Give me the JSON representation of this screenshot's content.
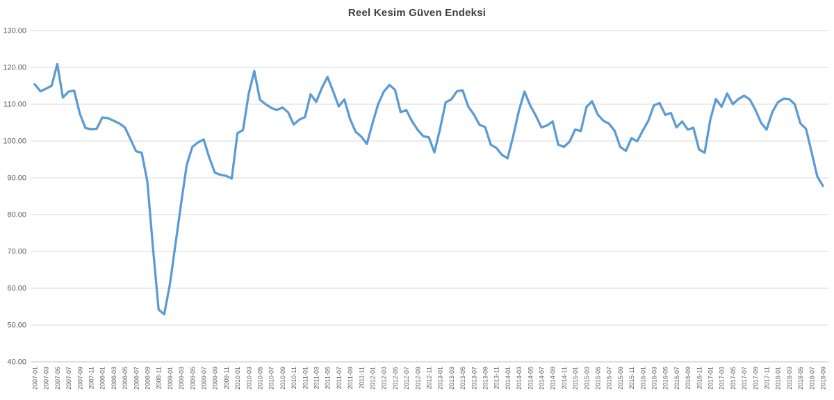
{
  "chart_data": {
    "type": "line",
    "title": "Reel Kesim Güven Endeksi",
    "xlabel": "",
    "ylabel": "",
    "ylim": [
      40,
      130
    ],
    "ytick_step": 10,
    "yticks": [
      "40.00",
      "50.00",
      "60.00",
      "70.00",
      "80.00",
      "90.00",
      "100.00",
      "110.00",
      "120.00",
      "130.00"
    ],
    "xtick_every": 2,
    "grid": true,
    "legend": "none",
    "colors": {
      "line": "#5b9bd5",
      "gridline": "#d9d9d9",
      "axis_line": "#bfbfbf",
      "tick_text": "#595959",
      "title_text": "#404040",
      "background": "#ffffff"
    },
    "x": [
      "2007-01",
      "2007-02",
      "2007-03",
      "2007-04",
      "2007-05",
      "2007-06",
      "2007-07",
      "2007-08",
      "2007-09",
      "2007-10",
      "2007-11",
      "2007-12",
      "2008-01",
      "2008-02",
      "2008-03",
      "2008-04",
      "2008-05",
      "2008-06",
      "2008-07",
      "2008-08",
      "2008-09",
      "2008-10",
      "2008-11",
      "2008-12",
      "2009-01",
      "2009-02",
      "2009-03",
      "2009-04",
      "2009-05",
      "2009-06",
      "2009-07",
      "2009-08",
      "2009-09",
      "2009-10",
      "2009-11",
      "2009-12",
      "2010-01",
      "2010-02",
      "2010-03",
      "2010-04",
      "2010-05",
      "2010-06",
      "2010-07",
      "2010-08",
      "2010-09",
      "2010-10",
      "2010-11",
      "2010-12",
      "2011-01",
      "2011-02",
      "2011-03",
      "2011-04",
      "2011-05",
      "2011-06",
      "2011-07",
      "2011-08",
      "2011-09",
      "2011-10",
      "2011-11",
      "2011-12",
      "2012-01",
      "2012-02",
      "2012-03",
      "2012-04",
      "2012-05",
      "2012-06",
      "2012-07",
      "2012-08",
      "2012-09",
      "2012-10",
      "2012-11",
      "2012-12",
      "2013-01",
      "2013-02",
      "2013-03",
      "2013-04",
      "2013-05",
      "2013-06",
      "2013-07",
      "2013-08",
      "2013-09",
      "2013-10",
      "2013-11",
      "2013-12",
      "2014-01",
      "2014-02",
      "2014-03",
      "2014-04",
      "2014-05",
      "2014-06",
      "2014-07",
      "2014-08",
      "2014-09",
      "2014-10",
      "2014-11",
      "2014-12",
      "2015-01",
      "2015-02",
      "2015-03",
      "2015-04",
      "2015-05",
      "2015-06",
      "2015-07",
      "2015-08",
      "2015-09",
      "2015-10",
      "2015-11",
      "2015-12",
      "2016-01",
      "2016-02",
      "2016-03",
      "2016-04",
      "2016-05",
      "2016-06",
      "2016-07",
      "2016-08",
      "2016-09",
      "2016-10",
      "2016-11",
      "2016-12",
      "2017-01",
      "2017-02",
      "2017-03",
      "2017-04",
      "2017-05",
      "2017-06",
      "2017-07",
      "2017-08",
      "2017-09",
      "2017-10",
      "2017-11",
      "2017-12",
      "2018-01",
      "2018-02",
      "2018-03",
      "2018-04",
      "2018-05",
      "2018-06",
      "2018-07",
      "2018-08",
      "2018-09"
    ],
    "values": [
      115.4,
      113.5,
      114.2,
      115.0,
      120.9,
      111.8,
      113.4,
      113.7,
      107.5,
      103.5,
      103.2,
      103.3,
      106.4,
      106.2,
      105.5,
      104.8,
      103.7,
      100.5,
      97.2,
      96.8,
      89.0,
      71.0,
      54.2,
      52.9,
      61.0,
      72.0,
      83.0,
      93.5,
      98.4,
      99.6,
      100.4,
      95.5,
      91.4,
      90.8,
      90.5,
      89.8,
      102.1,
      103.0,
      112.8,
      119.0,
      111.2,
      110.0,
      109.0,
      108.4,
      109.1,
      107.8,
      104.5,
      105.8,
      106.5,
      112.7,
      110.6,
      114.4,
      117.4,
      113.5,
      109.4,
      111.3,
      106.0,
      102.5,
      101.2,
      99.2,
      104.8,
      110.0,
      113.4,
      115.2,
      113.9,
      107.8,
      108.4,
      105.4,
      103.1,
      101.3,
      101.0,
      96.9,
      103.3,
      110.5,
      111.3,
      113.5,
      113.8,
      109.4,
      107.2,
      104.4,
      103.8,
      99.0,
      98.1,
      96.2,
      95.3,
      101.4,
      108.2,
      113.4,
      109.7,
      106.9,
      103.7,
      104.2,
      105.3,
      99.0,
      98.4,
      99.8,
      103.1,
      102.7,
      109.2,
      110.8,
      107.2,
      105.5,
      104.7,
      102.8,
      98.4,
      97.3,
      100.8,
      99.9,
      102.8,
      105.5,
      109.7,
      110.3,
      107.1,
      107.6,
      103.7,
      105.3,
      103.1,
      103.6,
      97.7,
      96.8,
      105.8,
      111.4,
      109.3,
      112.9,
      110.0,
      111.4,
      112.3,
      111.3,
      108.5,
      105.0,
      103.1,
      107.8,
      110.5,
      111.5,
      111.4,
      110.0,
      104.8,
      103.3,
      96.9,
      90.4,
      87.8
    ]
  }
}
